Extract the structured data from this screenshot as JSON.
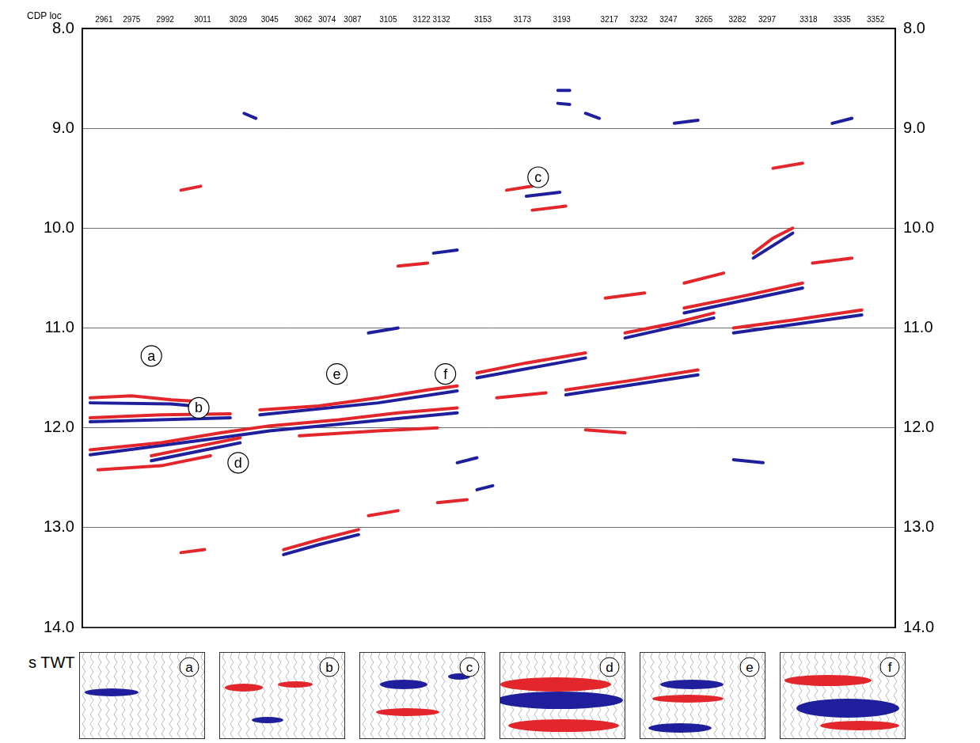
{
  "chart_data": {
    "type": "line",
    "x_label": "CDP loc",
    "y_label": "s TWT",
    "xlim": [
      2950,
      3362
    ],
    "xticks": [
      2961,
      2975,
      2992,
      3011,
      3029,
      3045,
      3062,
      3074,
      3087,
      3105,
      3122,
      3132,
      3153,
      3173,
      3193,
      3217,
      3232,
      3247,
      3265,
      3282,
      3297,
      3318,
      3335,
      3352
    ],
    "ylim": [
      8,
      14
    ],
    "yticks": [
      {
        "value": 8,
        "label": "8.0"
      },
      {
        "value": 9,
        "label": "9.0"
      },
      {
        "value": 10,
        "label": "10.0"
      },
      {
        "value": 11,
        "label": "11.0"
      },
      {
        "value": 12,
        "label": "12.0"
      },
      {
        "value": 13,
        "label": "13.0"
      },
      {
        "value": 14,
        "label": "14.0"
      }
    ],
    "grid": true,
    "series": [
      {
        "color": "#e3262b",
        "values": [
          [
            2954,
            11.7
          ],
          [
            2975,
            11.68
          ],
          [
            2995,
            11.72
          ],
          [
            3012,
            11.74
          ],
          null,
          [
            2954,
            11.9
          ],
          [
            2990,
            11.87
          ],
          [
            3025,
            11.86
          ],
          null,
          [
            2954,
            12.22
          ],
          [
            2990,
            12.15
          ],
          [
            3020,
            12.05
          ],
          [
            3045,
            11.98
          ],
          null,
          [
            2985,
            12.28
          ],
          [
            3010,
            12.18
          ],
          [
            3030,
            12.1
          ],
          null,
          [
            2958,
            12.42
          ],
          [
            2990,
            12.38
          ],
          [
            3015,
            12.28
          ],
          null,
          [
            3040,
            11.82
          ],
          [
            3070,
            11.78
          ],
          [
            3100,
            11.7
          ],
          [
            3125,
            11.62
          ],
          [
            3140,
            11.58
          ],
          null,
          [
            3045,
            11.98
          ],
          [
            3080,
            11.92
          ],
          [
            3110,
            11.85
          ],
          [
            3140,
            11.8
          ],
          null,
          [
            3060,
            12.08
          ],
          [
            3100,
            12.03
          ],
          [
            3130,
            12.0
          ],
          null,
          [
            3052,
            13.22
          ],
          [
            3070,
            13.12
          ],
          [
            3090,
            13.02
          ],
          null,
          [
            3095,
            12.88
          ],
          [
            3110,
            12.83
          ],
          null,
          [
            3150,
            11.45
          ],
          [
            3175,
            11.35
          ],
          [
            3205,
            11.25
          ],
          null,
          [
            3195,
            11.62
          ],
          [
            3230,
            11.52
          ],
          [
            3262,
            11.42
          ],
          null,
          [
            3160,
            11.7
          ],
          [
            3185,
            11.65
          ],
          null,
          [
            3225,
            11.05
          ],
          [
            3250,
            10.95
          ],
          [
            3270,
            10.85
          ],
          null,
          [
            3255,
            10.8
          ],
          [
            3285,
            10.68
          ],
          [
            3315,
            10.55
          ],
          null,
          [
            3280,
            11.0
          ],
          [
            3310,
            10.92
          ],
          [
            3345,
            10.82
          ],
          null,
          [
            3290,
            10.25
          ],
          [
            3300,
            10.1
          ],
          [
            3310,
            10.0
          ],
          null,
          [
            3255,
            10.55
          ],
          [
            3275,
            10.45
          ],
          null,
          [
            3320,
            10.35
          ],
          [
            3340,
            10.3
          ],
          null,
          [
            3178,
            9.82
          ],
          [
            3195,
            9.78
          ],
          null,
          [
            3165,
            9.62
          ],
          [
            3178,
            9.58
          ],
          null,
          [
            3000,
            9.62
          ],
          [
            3010,
            9.58
          ],
          null,
          [
            3215,
            10.7
          ],
          [
            3235,
            10.65
          ],
          null,
          [
            3110,
            10.38
          ],
          [
            3125,
            10.35
          ],
          null,
          [
            3130,
            12.75
          ],
          [
            3145,
            12.72
          ],
          null,
          [
            3000,
            13.25
          ],
          [
            3012,
            13.22
          ],
          null,
          [
            3300,
            9.4
          ],
          [
            3315,
            9.35
          ],
          null,
          [
            3205,
            12.02
          ],
          [
            3225,
            12.05
          ]
        ]
      },
      {
        "color": "#1f1f9e",
        "values": [
          [
            2954,
            11.75
          ],
          [
            2995,
            11.76
          ],
          [
            3012,
            11.79
          ],
          null,
          [
            2954,
            11.94
          ],
          [
            3025,
            11.9
          ],
          null,
          [
            2954,
            12.27
          ],
          [
            3020,
            12.1
          ],
          [
            3045,
            12.03
          ],
          null,
          [
            2985,
            12.33
          ],
          [
            3010,
            12.23
          ],
          [
            3030,
            12.15
          ],
          null,
          [
            3040,
            11.87
          ],
          [
            3100,
            11.75
          ],
          [
            3140,
            11.63
          ],
          null,
          [
            3045,
            12.03
          ],
          [
            3140,
            11.85
          ],
          null,
          [
            3052,
            13.27
          ],
          [
            3070,
            13.17
          ],
          [
            3090,
            13.07
          ],
          null,
          [
            3150,
            11.5
          ],
          [
            3205,
            11.3
          ],
          null,
          [
            3195,
            11.67
          ],
          [
            3262,
            11.47
          ],
          null,
          [
            3225,
            11.1
          ],
          [
            3270,
            10.9
          ],
          null,
          [
            3255,
            10.85
          ],
          [
            3315,
            10.6
          ],
          null,
          [
            3280,
            11.05
          ],
          [
            3345,
            10.87
          ],
          null,
          [
            3290,
            10.3
          ],
          [
            3310,
            10.05
          ],
          null,
          [
            3175,
            9.68
          ],
          [
            3192,
            9.64
          ],
          null,
          [
            3191,
            8.62
          ],
          [
            3197,
            8.62
          ],
          null,
          [
            3191,
            8.75
          ],
          [
            3197,
            8.76
          ],
          null,
          [
            3205,
            8.85
          ],
          [
            3212,
            8.9
          ],
          null,
          [
            3032,
            8.85
          ],
          [
            3038,
            8.9
          ],
          null,
          [
            3140,
            12.35
          ],
          [
            3150,
            12.3
          ],
          null,
          [
            3150,
            12.62
          ],
          [
            3158,
            12.58
          ],
          null,
          [
            3095,
            11.05
          ],
          [
            3110,
            11.0
          ],
          null,
          [
            3250,
            8.95
          ],
          [
            3262,
            8.92
          ],
          null,
          [
            3330,
            8.95
          ],
          [
            3340,
            8.9
          ],
          null,
          [
            3128,
            10.25
          ],
          [
            3140,
            10.22
          ],
          null,
          [
            3280,
            12.32
          ],
          [
            3295,
            12.35
          ]
        ]
      }
    ],
    "annotations": [
      {
        "text": "a",
        "x": 2985,
        "y": 11.28
      },
      {
        "text": "b",
        "x": 3009,
        "y": 11.8
      },
      {
        "text": "c",
        "x": 3181,
        "y": 9.49
      },
      {
        "text": "d",
        "x": 3029,
        "y": 12.35
      },
      {
        "text": "e",
        "x": 3079,
        "y": 11.46
      },
      {
        "text": "f",
        "x": 3134,
        "y": 11.46
      }
    ],
    "insets": [
      "a",
      "b",
      "c",
      "d",
      "e",
      "f"
    ]
  }
}
